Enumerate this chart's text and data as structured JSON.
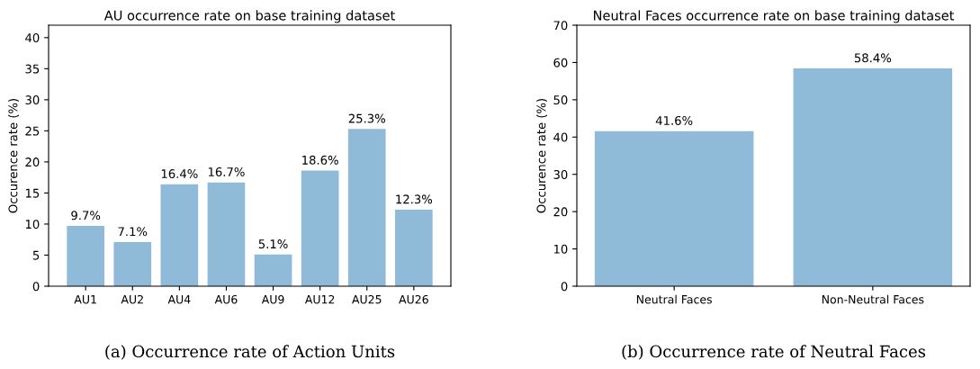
{
  "chart_data": [
    {
      "type": "bar",
      "title": "AU occurrence rate on base training dataset",
      "ylabel": "Occurence rate (%)",
      "categories": [
        "AU1",
        "AU2",
        "AU4",
        "AU6",
        "AU9",
        "AU12",
        "AU25",
        "AU26"
      ],
      "values": [
        9.7,
        7.1,
        16.4,
        16.7,
        5.1,
        18.6,
        25.3,
        12.3
      ],
      "color": "#8fbbd9",
      "value_labels": [
        "9.7%",
        "7.1%",
        "16.4%",
        "16.7%",
        "5.1%",
        "18.6%",
        "25.3%",
        "12.3%"
      ],
      "ylim": [
        0,
        42
      ],
      "yticks": [
        0,
        5,
        10,
        15,
        20,
        25,
        30,
        35,
        40
      ],
      "grid": false,
      "annotations": [
        "(a) Occurrence rate of Action Units"
      ]
    },
    {
      "type": "bar",
      "title": "Neutral Faces occurrence rate on base training dataset",
      "ylabel": "Occurence rate (%)",
      "categories": [
        "Neutral Faces",
        "Non-Neutral Faces"
      ],
      "values": [
        41.6,
        58.4
      ],
      "color": "#8fbbd9",
      "value_labels": [
        "41.6%",
        "58.4%"
      ],
      "ylim": [
        0,
        70
      ],
      "yticks": [
        0,
        10,
        20,
        30,
        40,
        50,
        60,
        70
      ],
      "grid": false,
      "annotations": [
        "(b) Occurrence rate of Neutral Faces"
      ]
    }
  ]
}
